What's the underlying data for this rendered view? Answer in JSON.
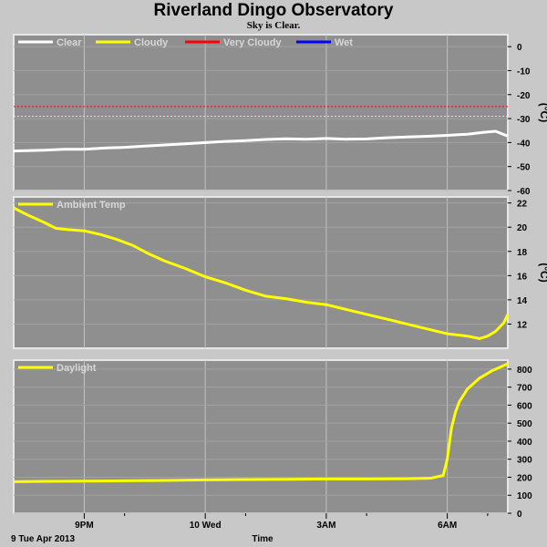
{
  "title": "Riverland Dingo Observatory",
  "subtitle": "Sky is Clear.",
  "time_axis": {
    "label": "Time",
    "date_label": "9 Tue Apr 2013",
    "ticks": [
      {
        "label": "9PM",
        "x": 0
      },
      {
        "label": "10 Wed",
        "x": 3
      },
      {
        "label": "3AM",
        "x": 6
      },
      {
        "label": "6AM",
        "x": 9
      }
    ],
    "minor_ticks": [
      1,
      4,
      7,
      10
    ],
    "xlim": [
      -1.75,
      10.5
    ]
  },
  "chart_data": [
    {
      "type": "line",
      "panel": "sky",
      "unit": "(°C)",
      "ylim": [
        -60,
        5
      ],
      "yticks": [
        0,
        -10,
        -20,
        -30,
        -40,
        -50,
        -60
      ],
      "grid": true,
      "legend_position": "top-left",
      "legend": [
        {
          "name": "Clear",
          "color": "#ffffff"
        },
        {
          "name": "Cloudy",
          "color": "#ffff00"
        },
        {
          "name": "Very Cloudy",
          "color": "#ff0000"
        },
        {
          "name": "Wet",
          "color": "#0000ff"
        }
      ],
      "thresholds": [
        {
          "series": "Very Cloudy",
          "value": -25,
          "color": "#ff0000"
        },
        {
          "series": "Cloudy",
          "value": -29,
          "color": "#ffff00"
        }
      ],
      "series": [
        {
          "name": "Clear",
          "color": "#ffffff",
          "x": [
            -1.75,
            -1.0,
            -0.5,
            0.0,
            0.5,
            1.0,
            1.5,
            2.0,
            2.5,
            3.0,
            3.5,
            4.0,
            4.5,
            5.0,
            5.5,
            6.0,
            6.5,
            7.0,
            7.5,
            8.0,
            8.5,
            9.0,
            9.5,
            9.9,
            10.2,
            10.5
          ],
          "y": [
            -43.5,
            -43.2,
            -42.8,
            -42.8,
            -42.3,
            -42.0,
            -41.5,
            -41.0,
            -40.5,
            -40.0,
            -39.5,
            -39.2,
            -38.7,
            -38.4,
            -38.6,
            -38.3,
            -38.6,
            -38.5,
            -38.0,
            -37.7,
            -37.4,
            -37.0,
            -36.5,
            -35.7,
            -35.3,
            -37.3
          ]
        }
      ]
    },
    {
      "type": "line",
      "panel": "ambient",
      "unit": "(°C)",
      "ylim": [
        10,
        22.5
      ],
      "yticks": [
        22,
        20,
        18,
        16,
        14,
        12
      ],
      "grid": true,
      "legend_position": "top-left",
      "series": [
        {
          "name": "Ambient Temp",
          "color": "#ffff00",
          "x": [
            -1.75,
            -1.4,
            -1.0,
            -0.7,
            -0.4,
            0.0,
            0.4,
            0.8,
            1.2,
            1.6,
            2.0,
            2.5,
            3.0,
            3.5,
            4.0,
            4.5,
            5.0,
            5.5,
            6.0,
            6.5,
            7.0,
            7.5,
            8.0,
            8.5,
            9.0,
            9.5,
            9.8,
            10.0,
            10.2,
            10.4,
            10.5
          ],
          "y": [
            21.6,
            21.0,
            20.4,
            19.9,
            19.8,
            19.7,
            19.4,
            19.0,
            18.5,
            17.8,
            17.2,
            16.6,
            15.9,
            15.4,
            14.8,
            14.3,
            14.1,
            13.8,
            13.6,
            13.2,
            12.8,
            12.4,
            12.0,
            11.6,
            11.2,
            11.0,
            10.8,
            11.0,
            11.4,
            12.1,
            12.8
          ]
        }
      ]
    },
    {
      "type": "line",
      "panel": "daylight",
      "unit": "",
      "ylim": [
        0,
        850
      ],
      "yticks": [
        800,
        700,
        600,
        500,
        400,
        300,
        200,
        100,
        0
      ],
      "grid": true,
      "legend_position": "top-left",
      "series": [
        {
          "name": "Daylight",
          "color": "#ffff00",
          "x": [
            -1.75,
            -1.0,
            0.0,
            1.0,
            2.0,
            3.0,
            4.0,
            5.0,
            6.0,
            7.0,
            8.0,
            8.6,
            8.9,
            9.0,
            9.1,
            9.2,
            9.3,
            9.5,
            9.8,
            10.1,
            10.5
          ],
          "y": [
            175,
            177,
            178,
            180,
            182,
            185,
            187,
            188,
            190,
            190,
            192,
            195,
            210,
            300,
            470,
            560,
            620,
            690,
            750,
            790,
            830
          ]
        }
      ]
    }
  ]
}
